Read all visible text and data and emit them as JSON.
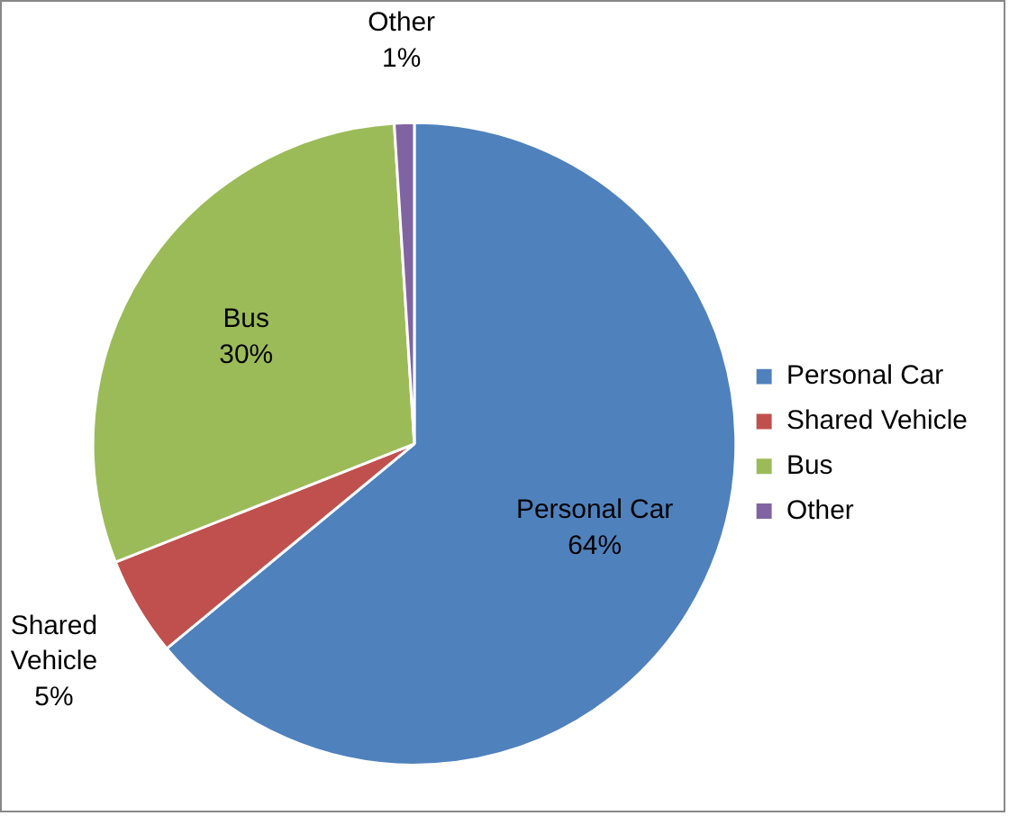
{
  "chart_data": {
    "type": "pie",
    "categories": [
      "Personal Car",
      "Shared Vehicle",
      "Bus",
      "Other"
    ],
    "values": [
      64,
      5,
      30,
      1
    ],
    "value_labels": [
      "64%",
      "5%",
      "30%",
      "1%"
    ],
    "colors": [
      "#4f81bd",
      "#c0504d",
      "#9bbb59",
      "#8064a2"
    ],
    "legend": "right"
  }
}
